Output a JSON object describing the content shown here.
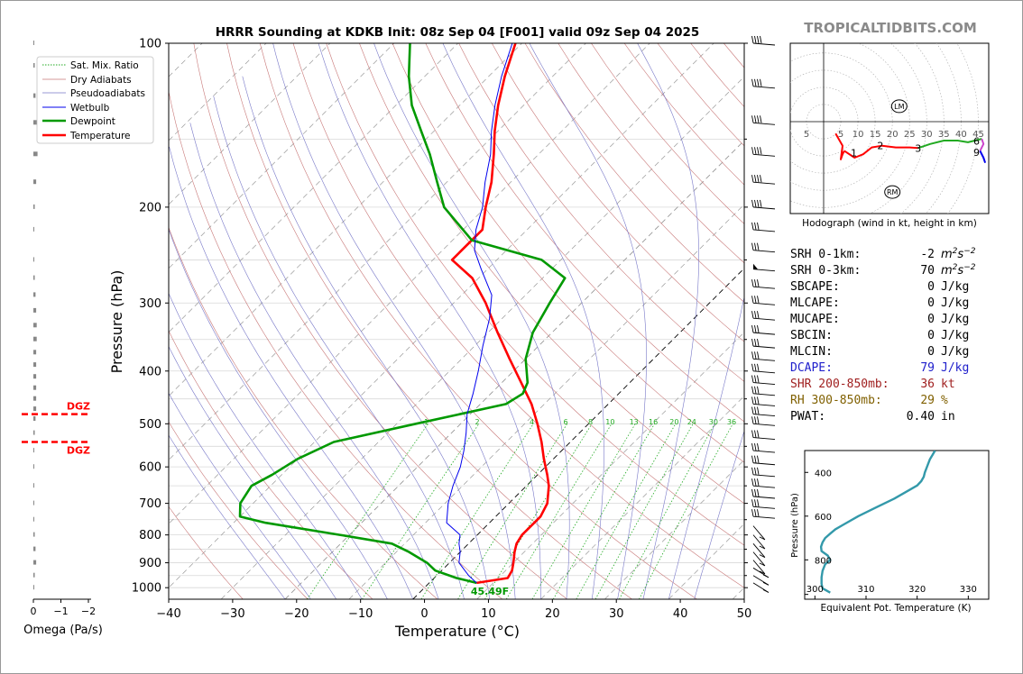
{
  "title": "HRRR Sounding at KDKB Init: 08z Sep 04 [F001] valid 09z Sep 04 2025",
  "watermark": "TROPICALTIDBITS.COM",
  "skewt": {
    "xlabel": "Temperature (°C)",
    "ylabel": "Pressure (hPa)",
    "x_ticks": [
      "−40",
      "−30",
      "−20",
      "−10",
      "0",
      "10",
      "20",
      "30",
      "40",
      "50"
    ],
    "y_ticks": [
      "100",
      "200",
      "300",
      "400",
      "500",
      "600",
      "700",
      "800",
      "900",
      "1000"
    ],
    "legend": [
      "Sat. Mix. Ratio",
      "Dry Adiabats",
      "Pseudoadiabats",
      "Wetbulb",
      "Dewpoint",
      "Temperature"
    ],
    "mixing_ratio_labels": [
      "1",
      "2",
      "4",
      "6",
      "8",
      "10",
      "13",
      "16",
      "20",
      "24",
      "30",
      "36"
    ],
    "surface_label": "45.49F",
    "colors": {
      "temperature": "#ff0000",
      "dewpoint": "#009900",
      "wetbulb": "#0000ee",
      "mix": "#22aa22",
      "dry": "#c87878",
      "moist": "#7878c8"
    }
  },
  "omega": {
    "xlabel": "Omega (Pa/s)",
    "x_ticks": [
      "0",
      "−1",
      "−2"
    ],
    "dgz_labels": [
      "DGZ",
      "DGZ"
    ]
  },
  "hodograph": {
    "caption": "Hodograph (wind in kt, height in km)",
    "ring_labels_left": [
      "5"
    ],
    "ring_labels": [
      "5",
      "10",
      "15",
      "20",
      "25",
      "30",
      "35",
      "40",
      "45"
    ],
    "height_labels": [
      "1",
      "2",
      "3",
      "6",
      "9"
    ],
    "markers": [
      "LM",
      "RM"
    ]
  },
  "indices": [
    {
      "label": "SRH 0-1km:",
      "value": "-2",
      "unit": "m2s-2",
      "color": "#000000"
    },
    {
      "label": "SRH 0-3km:",
      "value": "70",
      "unit": "m2s-2",
      "color": "#000000"
    },
    {
      "label": "SBCAPE:",
      "value": "0",
      "unit": "J/kg",
      "color": "#000000"
    },
    {
      "label": "MLCAPE:",
      "value": "0",
      "unit": "J/kg",
      "color": "#000000"
    },
    {
      "label": "MUCAPE:",
      "value": "0",
      "unit": "J/kg",
      "color": "#000000"
    },
    {
      "label": "SBCIN:",
      "value": "0",
      "unit": "J/kg",
      "color": "#000000"
    },
    {
      "label": "MLCIN:",
      "value": "0",
      "unit": "J/kg",
      "color": "#000000"
    },
    {
      "label": "DCAPE:",
      "value": "79",
      "unit": "J/kg",
      "color": "#2020cc"
    },
    {
      "label": "SHR 200-850mb:",
      "value": "36",
      "unit": "kt",
      "color": "#a02020"
    },
    {
      "label": "RH 300-850mb:",
      "value": "29",
      "unit": "%",
      "color": "#806000"
    },
    {
      "label": "PWAT:",
      "value": "0.40",
      "unit": "in",
      "color": "#000000"
    }
  ],
  "theta_e_panel": {
    "xlabel": "Equivalent Pot. Temperature (K)",
    "ylabel": "Pressure (hPa)",
    "x_ticks": [
      "300",
      "310",
      "320",
      "330"
    ],
    "y_ticks": [
      "400",
      "600",
      "800"
    ]
  },
  "chart_data": [
    {
      "type": "line",
      "title": "HRRR Sounding at KDKB Init: 08z Sep 04 [F001] valid 09z Sep 04 2025",
      "xlabel": "Temperature (°C)",
      "ylabel": "Pressure (hPa)",
      "xlim": [
        -40,
        50
      ],
      "ylim": [
        1050,
        100
      ],
      "y_scale": "log",
      "skew": true,
      "series": [
        {
          "name": "Temperature",
          "pressure": [
            980,
            960,
            930,
            900,
            860,
            830,
            800,
            760,
            740,
            700,
            650,
            620,
            580,
            540,
            500,
            460,
            420,
            380,
            340,
            300,
            270,
            250,
            220,
            200,
            180,
            160,
            145,
            130,
            115,
            100
          ],
          "values": [
            7.4,
            11.5,
            11.0,
            10.0,
            8.5,
            7.5,
            7.0,
            7.0,
            7.0,
            6.0,
            3.5,
            1.5,
            -1.5,
            -4.5,
            -8.0,
            -12.0,
            -17.0,
            -22.5,
            -28.5,
            -35.0,
            -41.0,
            -47.0,
            -47.0,
            -50.0,
            -53.0,
            -57.0,
            -60.5,
            -64.0,
            -67.5,
            -71.0
          ]
        },
        {
          "name": "Dewpoint",
          "pressure": [
            980,
            960,
            930,
            900,
            860,
            830,
            800,
            760,
            740,
            700,
            650,
            620,
            580,
            540,
            500,
            460,
            440,
            420,
            380,
            340,
            300,
            270,
            250,
            230,
            200,
            180,
            160,
            145,
            130,
            115,
            100
          ],
          "values": [
            7.4,
            3.5,
            -1.0,
            -3.5,
            -8.0,
            -12.0,
            -21.5,
            -35.0,
            -40.0,
            -42.0,
            -43.0,
            -41.5,
            -40.0,
            -37.0,
            -27.0,
            -16.0,
            -15.0,
            -16.0,
            -20.0,
            -23.0,
            -25.0,
            -26.5,
            -33.0,
            -47.0,
            -56.5,
            -61.5,
            -67.0,
            -72.0,
            -77.5,
            -82.5,
            -87.5
          ]
        },
        {
          "name": "Wetbulb",
          "pressure": [
            980,
            950,
            900,
            860,
            830,
            800,
            760,
            700,
            650,
            600,
            560,
            520,
            480,
            440,
            400,
            360,
            320,
            290,
            260,
            240,
            220,
            200,
            180,
            160,
            145,
            130,
            115,
            100
          ],
          "values": [
            7.4,
            5.0,
            1.5,
            0.0,
            -1.5,
            -2.7,
            -6.7,
            -9.5,
            -11.5,
            -13.3,
            -15.3,
            -17.7,
            -20.5,
            -22.8,
            -25.5,
            -28.7,
            -32.0,
            -35.3,
            -41.0,
            -45.0,
            -48.0,
            -50.5,
            -54.0,
            -57.5,
            -61.0,
            -64.5,
            -68.0,
            -71.5
          ]
        }
      ],
      "mixing_ratio_gkg": [
        1,
        2,
        4,
        6,
        8,
        10,
        13,
        16,
        20,
        24,
        30,
        36
      ],
      "surface": {
        "pressure": 980,
        "label": "45.49F"
      }
    },
    {
      "type": "line",
      "xlabel": "Omega (Pa/s)",
      "xlim": [
        0.3,
        -2.3
      ],
      "dgz_pressure": [
        480,
        540
      ],
      "series": [
        {
          "name": "Omega",
          "pressure": [
            100,
            110,
            125,
            140,
            160,
            180,
            200,
            220,
            250,
            270,
            290,
            310,
            330,
            350,
            370,
            390,
            410,
            430,
            450,
            470,
            490,
            520,
            560,
            600,
            650,
            700,
            750,
            800,
            850,
            900,
            950,
            1000
          ],
          "values": [
            0.0,
            -0.05,
            -0.08,
            -0.12,
            -0.15,
            -0.1,
            -0.05,
            0.0,
            -0.02,
            -0.05,
            -0.08,
            -0.1,
            -0.12,
            -0.12,
            -0.1,
            -0.1,
            -0.1,
            -0.1,
            -0.1,
            -0.1,
            -0.08,
            -0.05,
            -0.03,
            -0.02,
            -0.02,
            -0.02,
            -0.02,
            -0.05,
            -0.08,
            -0.1,
            -0.05,
            -0.02
          ]
        }
      ]
    },
    {
      "type": "line",
      "title": "Hodograph (wind in kt, height in km)",
      "rings_kt": [
        5,
        10,
        15,
        20,
        25,
        30,
        35,
        40,
        45
      ],
      "series": [
        {
          "name": "0-1 km",
          "u": [
            3.5,
            5.5,
            5.0,
            5.5,
            6.0
          ],
          "v": [
            -3.5,
            -7.0,
            -11.0,
            -9.5,
            -8.5
          ],
          "color": "#ff0000"
        },
        {
          "name": "1-3 km",
          "u": [
            6.0,
            9.0,
            11.5,
            14.0,
            17.0,
            21.0,
            25.0,
            27.5
          ],
          "v": [
            -8.5,
            -10.5,
            -9.5,
            -7.5,
            -7.0,
            -7.5,
            -7.5,
            -7.7
          ],
          "color": "#ff0000"
        },
        {
          "name": "3-6 km",
          "u": [
            27.5,
            31.0,
            35.0,
            39.0,
            42.0,
            44.0,
            46.0
          ],
          "v": [
            -7.7,
            -6.5,
            -5.5,
            -5.5,
            -6.0,
            -5.5,
            -5.0
          ],
          "color": "#22aa22"
        },
        {
          "name": "6-9 km",
          "u": [
            46.0,
            46.5,
            45.5
          ],
          "v": [
            -5.0,
            -6.5,
            -8.5
          ],
          "color": "#cc44cc"
        },
        {
          "name": "9+ km",
          "u": [
            45.5,
            46.5,
            47.0
          ],
          "v": [
            -8.5,
            -10.5,
            -12.0
          ],
          "color": "#0000ee"
        }
      ],
      "lm": {
        "u": 22,
        "v": 4.5
      },
      "rm": {
        "u": 20,
        "v": -20.5
      }
    },
    {
      "type": "line",
      "xlabel": "Equivalent Pot. Temperature (K)",
      "ylabel": "Pressure (hPa)",
      "xlim": [
        298,
        334
      ],
      "ylim": [
        980,
        300
      ],
      "series": [
        {
          "name": "Theta-e",
          "pressure": [
            950,
            930,
            910,
            880,
            850,
            820,
            800,
            780,
            760,
            740,
            720,
            700,
            680,
            660,
            640,
            600,
            560,
            520,
            480,
            460,
            440,
            420,
            400,
            370,
            340,
            320,
            300
          ],
          "values": [
            303.0,
            301.5,
            301.3,
            301.3,
            301.5,
            302.0,
            303.0,
            302.5,
            301.3,
            301.2,
            301.5,
            302.0,
            303.0,
            304.0,
            305.5,
            308.5,
            312.0,
            315.5,
            318.5,
            320.0,
            320.8,
            321.3,
            321.5,
            322.0,
            322.5,
            323.0,
            323.5
          ]
        }
      ]
    }
  ]
}
